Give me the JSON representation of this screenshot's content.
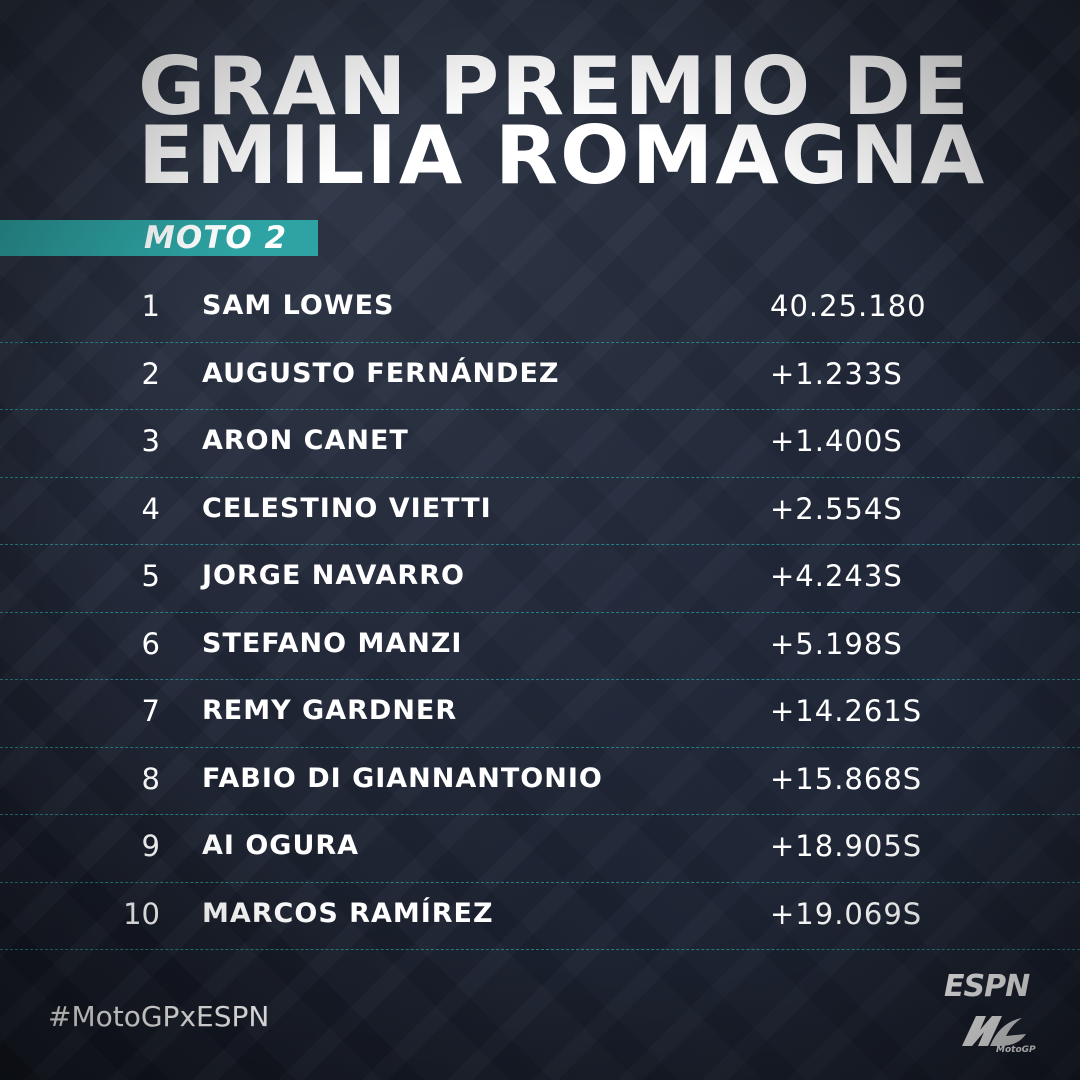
{
  "header": {
    "title_line1": "GRAN PREMIO DE",
    "title_line2": "EMILIA ROMAGNA"
  },
  "category": {
    "label": "MOTO 2",
    "accent_color": "#2ea3a3"
  },
  "results": [
    {
      "position": "1",
      "rider": "SAM LOWES",
      "time": "40.25.180"
    },
    {
      "position": "2",
      "rider": "AUGUSTO FERNÁNDEZ",
      "time": "+1.233S"
    },
    {
      "position": "3",
      "rider": "ARON CANET",
      "time": "+1.400S"
    },
    {
      "position": "4",
      "rider": "CELESTINO VIETTI",
      "time": "+2.554S"
    },
    {
      "position": "5",
      "rider": "JORGE NAVARRO",
      "time": "+4.243S"
    },
    {
      "position": "6",
      "rider": "STEFANO MANZI",
      "time": "+5.198S"
    },
    {
      "position": "7",
      "rider": "REMY GARDNER",
      "time": "+14.261S"
    },
    {
      "position": "8",
      "rider": "FABIO DI GIANNANTONIO",
      "time": "+15.868S"
    },
    {
      "position": "9",
      "rider": "AI OGURA",
      "time": "+18.905S"
    },
    {
      "position": "10",
      "rider": "MARCOS RAMÍREZ",
      "time": "+19.069S"
    }
  ],
  "footer": {
    "hashtag": "#MotoGPxESPN",
    "espn_logo": "ESPN",
    "motogp_logo": "MotoGP"
  }
}
